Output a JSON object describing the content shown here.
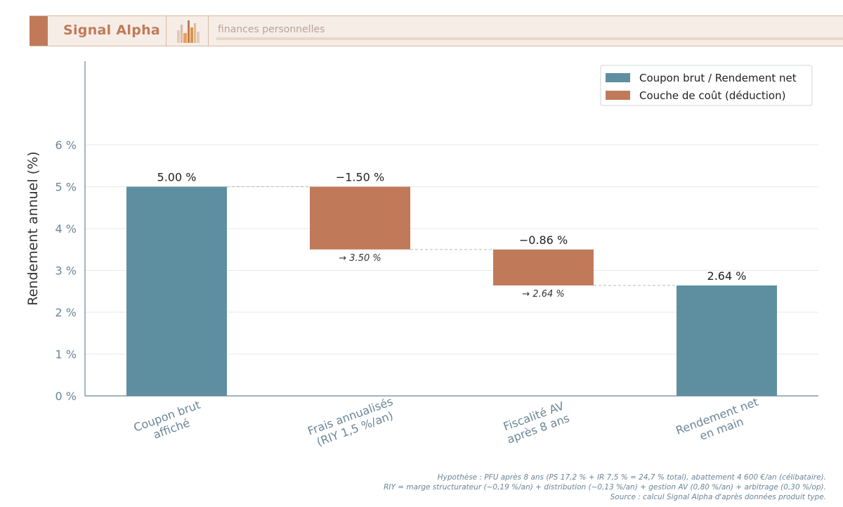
{
  "header": {
    "brand": "Signal Alpha",
    "subtitle": "finances personnelles"
  },
  "colors": {
    "total": "#5e8fa1",
    "cost": "#c07a5a",
    "axis": "#6a8596",
    "grid": "#e6e9ec"
  },
  "chart_data": {
    "type": "bar",
    "subtype": "waterfall",
    "ylabel": "Rendement annuel (%)",
    "xlabel": "",
    "ylim": [
      0,
      8
    ],
    "yticks": [
      0,
      1,
      2,
      3,
      4,
      5,
      6
    ],
    "ytick_labels": [
      "0 %",
      "1 %",
      "2 %",
      "3 %",
      "4 %",
      "5 %",
      "6 %"
    ],
    "grid": true,
    "legend_position": "top-right",
    "legend": [
      {
        "label": "Coupon brut / Rendement net",
        "kind": "total"
      },
      {
        "label": "Couche de coût (déduction)",
        "kind": "cost"
      }
    ],
    "categories": [
      [
        "Coupon brut",
        "affiché"
      ],
      [
        "Frais annualisés",
        "(RIY 1,5 %/an)"
      ],
      [
        "Fiscalité AV",
        "après 8 ans"
      ],
      [
        "Rendement net",
        "en main"
      ]
    ],
    "bars": [
      {
        "kind": "total",
        "start": 0,
        "end": 5.0,
        "label": "5.00 %",
        "sub_label": ""
      },
      {
        "kind": "cost",
        "start": 5.0,
        "end": 3.5,
        "label": "−1.50 %",
        "sub_label": "→ 3.50 %"
      },
      {
        "kind": "cost",
        "start": 3.5,
        "end": 2.64,
        "label": "−0.86 %",
        "sub_label": "→ 2.64 %"
      },
      {
        "kind": "total",
        "start": 0,
        "end": 2.64,
        "label": "2.64 %",
        "sub_label": ""
      }
    ]
  },
  "footnotes": {
    "line1": "Hypothèse : PFU après 8 ans (PS 17,2 % + IR 7,5 % = 24,7 % total), abattement 4 600 €/an (célibataire).",
    "line2": "RIY = marge structurateur (~0,19 %/an) + distribution (~0,13 %/an) + gestion AV (0,80 %/an) + arbitrage (0,30 %/op).",
    "line3": "Source : calcul Signal Alpha d'après données produit type."
  }
}
